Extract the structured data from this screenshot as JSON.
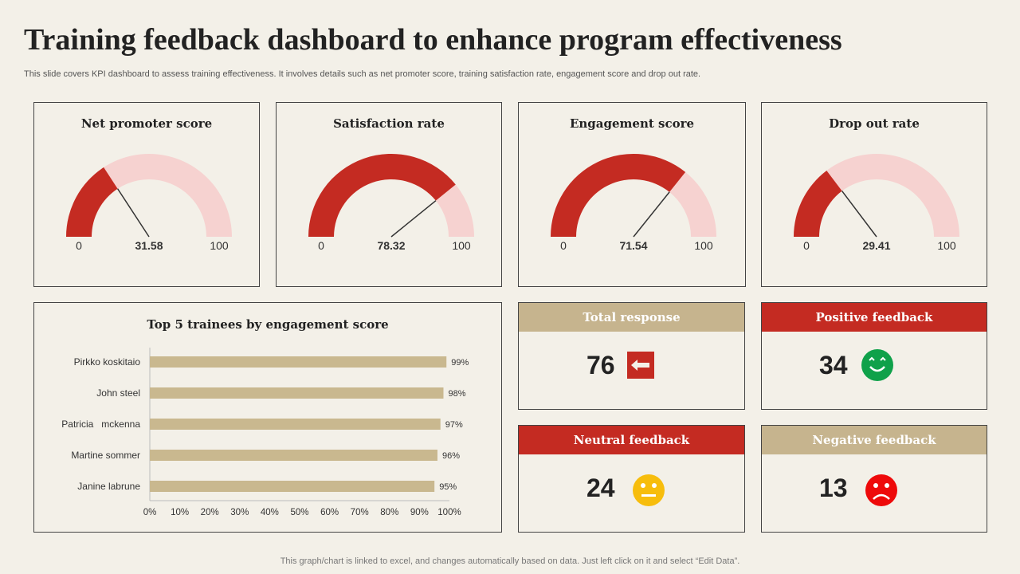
{
  "title": "Training feedback dashboard to enhance program effectiveness",
  "subtitle": "This slide covers  KPI dashboard to assess training effectiveness. It involves details such as net promoter score, training satisfaction rate, engagement score and drop out rate.",
  "footer": "This graph/chart is linked to excel,  and changes automatically based on data. Just left click on it and select “Edit Data”.",
  "colors": {
    "fill": "#c42b22",
    "track": "#f6d2d0",
    "bar": "#c9b88f",
    "tan": "#c6b48e",
    "red": "#c42b22"
  },
  "chart_data": [
    {
      "type": "gauge",
      "title": "Net promoter score",
      "value": 31.58,
      "min": 0,
      "max": 100,
      "min_label": "0",
      "max_label": "100",
      "value_label": "31.58"
    },
    {
      "type": "gauge",
      "title": "Satisfaction rate",
      "value": 78.32,
      "min": 0,
      "max": 100,
      "min_label": "0",
      "max_label": "100",
      "value_label": "78.32"
    },
    {
      "type": "gauge",
      "title": "Engagement score",
      "value": 71.54,
      "min": 0,
      "max": 100,
      "min_label": "0",
      "max_label": "100",
      "value_label": "71.54"
    },
    {
      "type": "gauge",
      "title": "Drop out rate",
      "value": 29.41,
      "min": 0,
      "max": 100,
      "min_label": "0",
      "max_label": "100",
      "value_label": "29.41"
    },
    {
      "type": "bar",
      "orientation": "horizontal",
      "title": "Top 5 trainees by engagement  score",
      "categories": [
        "Pirkko koskitaio",
        "John steel",
        "Patricia   mckenna",
        "Martine sommer",
        "Janine labrune"
      ],
      "values": [
        99,
        98,
        97,
        96,
        95
      ],
      "data_labels": [
        "99%",
        "98%",
        "97%",
        "96%",
        "95%"
      ],
      "xlim": [
        0,
        100
      ],
      "xticks": [
        "0%",
        "10%",
        "20%",
        "30%",
        "40%",
        "50%",
        "60%",
        "70%",
        "80%",
        "90%",
        "100%"
      ],
      "grid": false
    }
  ],
  "kpis": [
    {
      "label": "Total response",
      "value": "76",
      "icon": "arrow-left-icon",
      "header_color": "#c6b48e"
    },
    {
      "label": "Positive feedback",
      "value": "34",
      "icon": "happy-face-icon",
      "header_color": "#c42b22"
    },
    {
      "label": "Neutral  feedback",
      "value": "24",
      "icon": "neutral-face-icon",
      "header_color": "#c42b22"
    },
    {
      "label": "Negative feedback",
      "value": "13",
      "icon": "sad-face-icon",
      "header_color": "#c6b48e"
    }
  ]
}
